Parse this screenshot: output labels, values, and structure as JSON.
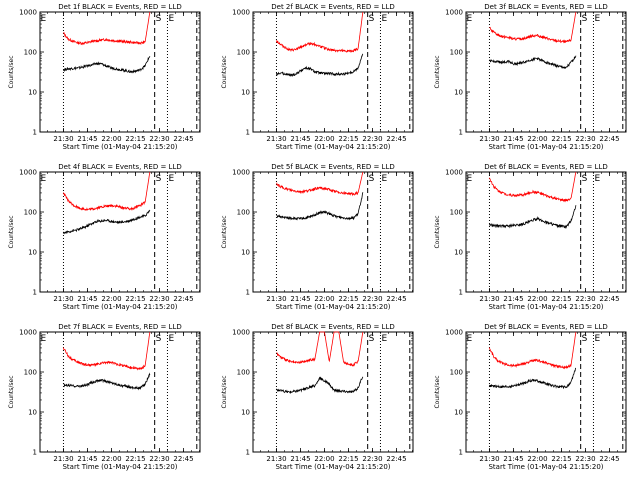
{
  "chart_data": [
    {
      "type": "line",
      "title": "Det 1f BLACK = Events, RED = LLD",
      "ylabel": "Counts/sec",
      "xlabel": "Start Time (01-May-04 21:15:20)",
      "x_ticks": [
        "21:30",
        "21:45",
        "22:00",
        "22:15",
        "22:30",
        "22:45"
      ],
      "y_ticks": [
        "1",
        "10",
        "100",
        "1000"
      ],
      "yscale": "log",
      "ylim": [
        1,
        1000
      ],
      "markers": [
        {
          "label": "E",
          "t": "21:15"
        },
        {
          "label": "S",
          "t": "22:27"
        },
        {
          "label": "E",
          "t": "22:35"
        }
      ],
      "series": [
        {
          "color": "#ff0000",
          "values": [
            300,
            210,
            185,
            170,
            165,
            170,
            185,
            190,
            200,
            205,
            195,
            190,
            185,
            180,
            175,
            170,
            168,
            175,
            1000
          ]
        },
        {
          "color": "#000000",
          "values": [
            36,
            38,
            39,
            40,
            42,
            45,
            48,
            52,
            50,
            44,
            40,
            38,
            36,
            34,
            32,
            33,
            36,
            45,
            80
          ]
        }
      ]
    },
    {
      "type": "line",
      "title": "Det 2f BLACK = Events, RED = LLD",
      "ylabel": "Counts/sec",
      "xlabel": "Start Time (01-May-04 21:15:20)",
      "x_ticks": [
        "21:30",
        "21:45",
        "22:00",
        "22:15",
        "22:30",
        "22:45"
      ],
      "y_ticks": [
        "1",
        "10",
        "100",
        "1000"
      ],
      "yscale": "log",
      "ylim": [
        1,
        1000
      ],
      "markers": [
        {
          "label": "S",
          "t": "22:27"
        },
        {
          "label": "E",
          "t": "22:35"
        }
      ],
      "series": [
        {
          "color": "#ff0000",
          "values": [
            190,
            150,
            125,
            110,
            115,
            130,
            150,
            165,
            155,
            140,
            125,
            115,
            110,
            108,
            105,
            104,
            108,
            120,
            1000
          ]
        },
        {
          "color": "#000000",
          "values": [
            28,
            30,
            28,
            26,
            28,
            34,
            40,
            38,
            32,
            30,
            29,
            29,
            28,
            28,
            28,
            30,
            32,
            40,
            90
          ]
        }
      ]
    },
    {
      "type": "line",
      "title": "Det 3f BLACK = Events, RED = LLD",
      "ylabel": "Counts/sec",
      "xlabel": "Start Time (01-May-04 21:15:20)",
      "x_ticks": [
        "21:30",
        "21:45",
        "22:00",
        "22:15",
        "22:30",
        "22:45"
      ],
      "y_ticks": [
        "1",
        "10",
        "100",
        "1000"
      ],
      "yscale": "log",
      "ylim": [
        1,
        1000
      ],
      "markers": [
        {
          "label": "E",
          "t": "21:15"
        },
        {
          "label": "S",
          "t": "22:27"
        },
        {
          "label": "E",
          "t": "22:35"
        }
      ],
      "series": [
        {
          "color": "#ff0000",
          "values": [
            400,
            300,
            260,
            240,
            230,
            210,
            210,
            215,
            235,
            255,
            260,
            235,
            220,
            200,
            190,
            185,
            180,
            200,
            1000
          ]
        },
        {
          "color": "#000000",
          "values": [
            60,
            58,
            56,
            55,
            60,
            50,
            52,
            55,
            60,
            65,
            70,
            60,
            54,
            50,
            45,
            42,
            40,
            55,
            80
          ]
        }
      ]
    },
    {
      "type": "line",
      "title": "Det 4f BLACK = Events, RED = LLD",
      "ylabel": "Counts/sec",
      "xlabel": "Start Time (01-May-04 21:15:20)",
      "x_ticks": [
        "21:30",
        "21:45",
        "22:00",
        "22:15",
        "22:30",
        "22:45"
      ],
      "y_ticks": [
        "1",
        "10",
        "100",
        "1000"
      ],
      "yscale": "log",
      "ylim": [
        1,
        1000
      ],
      "markers": [
        {
          "label": "E",
          "t": "21:15"
        },
        {
          "label": "S",
          "t": "22:27"
        },
        {
          "label": "E",
          "t": "22:35"
        }
      ],
      "series": [
        {
          "color": "#ff0000",
          "values": [
            300,
            190,
            150,
            130,
            120,
            115,
            118,
            125,
            135,
            140,
            145,
            140,
            130,
            125,
            120,
            130,
            150,
            170,
            1000
          ]
        },
        {
          "color": "#000000",
          "values": [
            30,
            32,
            34,
            36,
            40,
            45,
            52,
            58,
            60,
            62,
            58,
            56,
            55,
            58,
            62,
            68,
            75,
            80,
            110
          ]
        }
      ]
    },
    {
      "type": "line",
      "title": "Det 5f BLACK = Events, RED = LLD",
      "ylabel": "Counts/sec",
      "xlabel": "Start Time (01-May-04 21:15:20)",
      "x_ticks": [
        "21:30",
        "21:45",
        "22:00",
        "22:15",
        "22:30",
        "22:45"
      ],
      "y_ticks": [
        "1",
        "10",
        "100",
        "1000"
      ],
      "yscale": "log",
      "ylim": [
        1,
        1000
      ],
      "markers": [
        {
          "label": "S",
          "t": "22:27"
        },
        {
          "label": "E",
          "t": "22:35"
        }
      ],
      "series": [
        {
          "color": "#ff0000",
          "values": [
            500,
            420,
            380,
            350,
            330,
            320,
            330,
            350,
            380,
            400,
            390,
            360,
            330,
            310,
            300,
            290,
            280,
            300,
            1000
          ]
        },
        {
          "color": "#000000",
          "values": [
            80,
            75,
            72,
            70,
            68,
            68,
            70,
            75,
            85,
            95,
            100,
            90,
            80,
            75,
            72,
            70,
            70,
            90,
            300
          ]
        }
      ]
    },
    {
      "type": "line",
      "title": "Det 6f BLACK = Events, RED = LLD",
      "ylabel": "Counts/sec",
      "xlabel": "Start Time (01-May-04 21:15:20)",
      "x_ticks": [
        "21:30",
        "21:45",
        "22:00",
        "22:15",
        "22:30",
        "22:45"
      ],
      "y_ticks": [
        "1",
        "10",
        "100",
        "1000"
      ],
      "yscale": "log",
      "ylim": [
        1,
        1000
      ],
      "markers": [
        {
          "label": "E",
          "t": "21:15"
        },
        {
          "label": "S",
          "t": "22:27"
        },
        {
          "label": "E",
          "t": "22:35"
        }
      ],
      "series": [
        {
          "color": "#ff0000",
          "values": [
            700,
            420,
            330,
            290,
            270,
            260,
            260,
            270,
            290,
            320,
            310,
            280,
            250,
            230,
            210,
            200,
            195,
            220,
            1000
          ]
        },
        {
          "color": "#000000",
          "values": [
            48,
            46,
            45,
            44,
            45,
            46,
            48,
            50,
            55,
            62,
            68,
            60,
            55,
            50,
            46,
            44,
            42,
            60,
            140
          ]
        }
      ]
    },
    {
      "type": "line",
      "title": "Det 7f BLACK = Events, RED = LLD",
      "ylabel": "Counts/sec",
      "xlabel": "Start Time (01-May-04 21:15:20)",
      "x_ticks": [
        "21:30",
        "21:45",
        "22:00",
        "22:15",
        "22:30",
        "22:45"
      ],
      "y_ticks": [
        "1",
        "10",
        "100",
        "1000"
      ],
      "yscale": "log",
      "ylim": [
        1,
        1000
      ],
      "markers": [
        {
          "label": "E",
          "t": "21:15"
        },
        {
          "label": "S",
          "t": "22:27"
        },
        {
          "label": "E",
          "t": "22:35"
        }
      ],
      "series": [
        {
          "color": "#ff0000",
          "values": [
            400,
            250,
            200,
            175,
            160,
            150,
            150,
            155,
            165,
            175,
            170,
            160,
            150,
            140,
            130,
            125,
            120,
            140,
            1000
          ]
        },
        {
          "color": "#000000",
          "values": [
            48,
            46,
            45,
            44,
            45,
            48,
            55,
            60,
            62,
            58,
            54,
            50,
            46,
            44,
            42,
            40,
            40,
            50,
            90
          ]
        }
      ]
    },
    {
      "type": "line",
      "title": "Det 8f BLACK = Events, RED = LLD",
      "ylabel": "Counts/sec",
      "xlabel": "Start Time (01-May-04 21:15:20)",
      "x_ticks": [
        "21:30",
        "21:45",
        "22:00",
        "22:15",
        "22:30",
        "22:45"
      ],
      "y_ticks": [
        "1",
        "10",
        "100",
        "1000"
      ],
      "yscale": "log",
      "ylim": [
        1,
        1000
      ],
      "markers": [
        {
          "label": "S",
          "t": "22:27"
        },
        {
          "label": "E",
          "t": "22:35"
        }
      ],
      "series": [
        {
          "color": "#ff0000",
          "values": [
            300,
            230,
            200,
            180,
            170,
            175,
            185,
            200,
            210,
            1000,
            1000,
            180,
            1000,
            1000,
            170,
            160,
            150,
            180,
            1000
          ]
        },
        {
          "color": "#000000",
          "values": [
            36,
            34,
            32,
            32,
            33,
            35,
            38,
            42,
            45,
            70,
            60,
            50,
            35,
            34,
            33,
            32,
            32,
            40,
            80
          ]
        }
      ]
    },
    {
      "type": "line",
      "title": "Det 9f BLACK = Events, RED = LLD",
      "ylabel": "Counts/sec",
      "xlabel": "Start Time (01-May-04 21:15:20)",
      "x_ticks": [
        "21:30",
        "21:45",
        "22:00",
        "22:15",
        "22:30",
        "22:45"
      ],
      "y_ticks": [
        "1",
        "10",
        "100",
        "1000"
      ],
      "yscale": "log",
      "ylim": [
        1,
        1000
      ],
      "markers": [
        {
          "label": "E",
          "t": "21:15"
        },
        {
          "label": "S",
          "t": "22:27"
        },
        {
          "label": "E",
          "t": "22:35"
        }
      ],
      "series": [
        {
          "color": "#ff0000",
          "values": [
            400,
            230,
            180,
            160,
            150,
            145,
            150,
            160,
            175,
            190,
            195,
            180,
            165,
            150,
            140,
            135,
            130,
            150,
            1000
          ]
        },
        {
          "color": "#000000",
          "values": [
            45,
            44,
            43,
            42,
            43,
            45,
            48,
            52,
            58,
            62,
            60,
            55,
            50,
            46,
            44,
            42,
            42,
            55,
            130
          ]
        }
      ]
    }
  ]
}
